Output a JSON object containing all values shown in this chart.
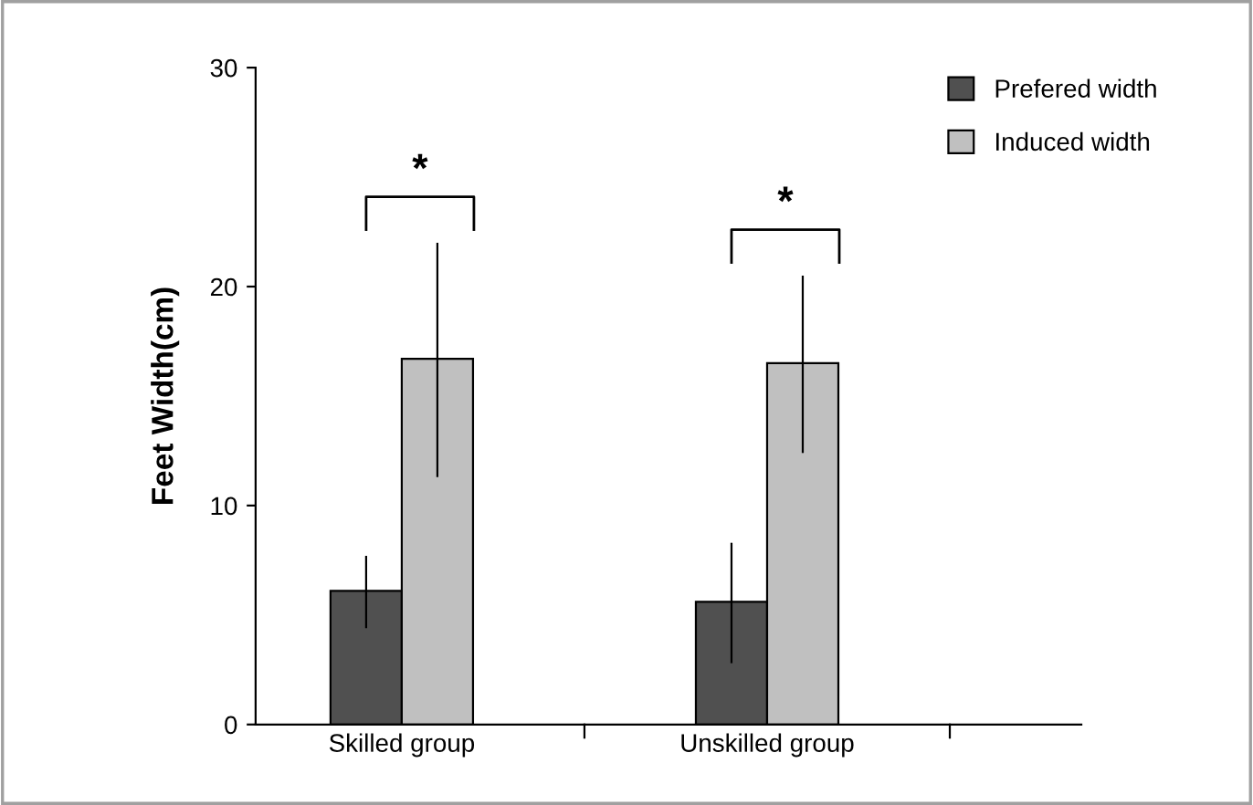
{
  "chart_data": {
    "type": "bar",
    "ylabel": "Feet Width(cm)",
    "categories": [
      "Skilled group",
      "Unskilled group"
    ],
    "series": [
      {
        "name": "Prefered width",
        "color": "#505050",
        "values": [
          6.1,
          5.6
        ],
        "errors": [
          [
            4.4,
            7.7
          ],
          [
            2.8,
            8.3
          ]
        ]
      },
      {
        "name": "Induced width",
        "color": "#c0c0c0",
        "values": [
          16.7,
          16.5
        ],
        "errors": [
          [
            11.3,
            22.0
          ],
          [
            12.4,
            20.5
          ]
        ]
      }
    ],
    "ylim": [
      0,
      30
    ],
    "yticks": [
      0,
      10,
      20,
      30
    ],
    "grid": false,
    "legend": "top right",
    "annotations": [
      "*",
      "*"
    ]
  }
}
